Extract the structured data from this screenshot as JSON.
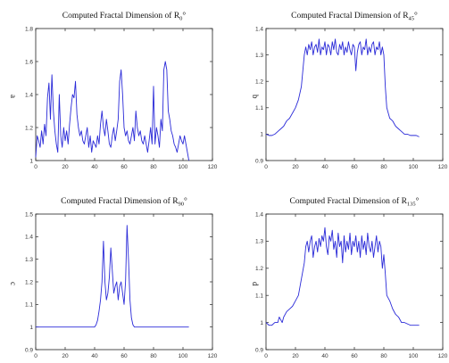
{
  "chart_data": [
    {
      "type": "line",
      "panel_label": "a",
      "title": {
        "prefix": "Computed Fractal Dimension of R",
        "sub": "0",
        "suffix": "°"
      },
      "xlim": [
        0,
        120
      ],
      "ylim": [
        1,
        1.8
      ],
      "xticks": [
        0,
        20,
        40,
        60,
        80,
        100,
        120
      ],
      "yticks": [
        1,
        1.2,
        1.4,
        1.6,
        1.8
      ],
      "ytick_labels": [
        "1",
        "1.2",
        "1.4",
        "1.6",
        "1.8"
      ],
      "color": "#2a2ad8",
      "series": [
        {
          "x": [
            0,
            1,
            2,
            3,
            4,
            5,
            6,
            7,
            8,
            9,
            10,
            11,
            12,
            13,
            14,
            15,
            16,
            17,
            18,
            19,
            20,
            21,
            22,
            23,
            24,
            25,
            26,
            27,
            28,
            29,
            30,
            31,
            32,
            33,
            34,
            35,
            36,
            37,
            38,
            39,
            40,
            41,
            42,
            43,
            44,
            45,
            46,
            47,
            48,
            49,
            50,
            51,
            52,
            53,
            54,
            55,
            56,
            57,
            58,
            59,
            60,
            61,
            62,
            63,
            64,
            65,
            66,
            67,
            68,
            69,
            70,
            71,
            72,
            73,
            74,
            75,
            76,
            77,
            78,
            79,
            80,
            81,
            82,
            83,
            84,
            85,
            86,
            87,
            88,
            89,
            90,
            91,
            92,
            93,
            94,
            95,
            96,
            97,
            98,
            99,
            100,
            101,
            102,
            103,
            104
          ],
          "y": [
            1.02,
            1.15,
            1.12,
            1.08,
            1.18,
            1.1,
            1.22,
            1.15,
            1.38,
            1.47,
            1.25,
            1.52,
            1.3,
            1.18,
            1.1,
            1.05,
            1.4,
            1.15,
            1.08,
            1.2,
            1.12,
            1.18,
            1.1,
            1.22,
            1.32,
            1.4,
            1.38,
            1.48,
            1.28,
            1.2,
            1.15,
            1.18,
            1.12,
            1.1,
            1.15,
            1.2,
            1.08,
            1.15,
            1.05,
            1.12,
            1.1,
            1.08,
            1.15,
            1.1,
            1.22,
            1.3,
            1.2,
            1.15,
            1.25,
            1.18,
            1.1,
            1.08,
            1.15,
            1.2,
            1.12,
            1.18,
            1.25,
            1.48,
            1.55,
            1.4,
            1.2,
            1.15,
            1.18,
            1.12,
            1.1,
            1.15,
            1.2,
            1.12,
            1.3,
            1.2,
            1.15,
            1.18,
            1.12,
            1.1,
            1.15,
            1.1,
            1.05,
            1.12,
            1.2,
            1.1,
            1.45,
            1.1,
            1.2,
            1.15,
            1.08,
            1.25,
            1.18,
            1.55,
            1.6,
            1.55,
            1.3,
            1.25,
            1.18,
            1.15,
            1.1,
            1.08,
            1.05,
            1.1,
            1.15,
            1.12,
            1.1,
            1.15,
            1.1,
            1.05,
            1.0
          ]
        }
      ]
    },
    {
      "type": "line",
      "panel_label": "b",
      "title": {
        "prefix": "Computed Fractal Dimension of R",
        "sub": "45",
        "suffix": "°"
      },
      "xlim": [
        0,
        120
      ],
      "ylim": [
        0.9,
        1.4
      ],
      "xticks": [
        0,
        20,
        40,
        60,
        80,
        100,
        120
      ],
      "yticks": [
        0.9,
        1,
        1.1,
        1.2,
        1.3,
        1.4
      ],
      "ytick_labels": [
        "0.9",
        "1",
        "1.1",
        "1.2",
        "1.3",
        "1.4"
      ],
      "color": "#2a2ad8",
      "series": [
        {
          "x": [
            0,
            2,
            4,
            6,
            8,
            10,
            12,
            14,
            16,
            18,
            20,
            22,
            24,
            25,
            26,
            27,
            28,
            29,
            30,
            31,
            32,
            33,
            34,
            35,
            36,
            37,
            38,
            39,
            40,
            41,
            42,
            43,
            44,
            45,
            46,
            47,
            48,
            49,
            50,
            51,
            52,
            53,
            54,
            55,
            56,
            57,
            58,
            59,
            60,
            61,
            62,
            63,
            64,
            65,
            66,
            67,
            68,
            69,
            70,
            71,
            72,
            73,
            74,
            75,
            76,
            77,
            78,
            79,
            80,
            81,
            82,
            84,
            86,
            88,
            90,
            92,
            94,
            96,
            98,
            100,
            102,
            104
          ],
          "y": [
            1.0,
            0.995,
            0.995,
            1.0,
            1.01,
            1.02,
            1.03,
            1.05,
            1.06,
            1.08,
            1.1,
            1.13,
            1.18,
            1.24,
            1.3,
            1.33,
            1.3,
            1.34,
            1.32,
            1.35,
            1.3,
            1.33,
            1.34,
            1.31,
            1.36,
            1.3,
            1.33,
            1.32,
            1.35,
            1.3,
            1.34,
            1.33,
            1.3,
            1.35,
            1.32,
            1.36,
            1.31,
            1.3,
            1.34,
            1.32,
            1.35,
            1.3,
            1.33,
            1.31,
            1.35,
            1.32,
            1.3,
            1.34,
            1.33,
            1.24,
            1.31,
            1.34,
            1.35,
            1.3,
            1.33,
            1.32,
            1.36,
            1.3,
            1.33,
            1.31,
            1.34,
            1.35,
            1.3,
            1.33,
            1.32,
            1.35,
            1.3,
            1.33,
            1.3,
            1.18,
            1.1,
            1.06,
            1.05,
            1.03,
            1.02,
            1.01,
            1.0,
            1.0,
            0.995,
            0.995,
            0.995,
            0.99
          ]
        }
      ]
    },
    {
      "type": "line",
      "panel_label": "c",
      "title": {
        "prefix": "Computed Fractal Dimension of R",
        "sub": "90",
        "suffix": "°"
      },
      "xlim": [
        0,
        120
      ],
      "ylim": [
        0.9,
        1.5
      ],
      "xticks": [
        0,
        20,
        40,
        60,
        80,
        100,
        120
      ],
      "yticks": [
        0.9,
        1,
        1.1,
        1.2,
        1.3,
        1.4,
        1.5
      ],
      "ytick_labels": [
        "0.9",
        "1",
        "1.1",
        "1.2",
        "1.3",
        "1.4",
        "1.5"
      ],
      "color": "#2a2ad8",
      "series": [
        {
          "x": [
            0,
            10,
            20,
            30,
            40,
            41,
            42,
            43,
            44,
            45,
            46,
            47,
            48,
            49,
            50,
            51,
            52,
            53,
            54,
            55,
            56,
            57,
            58,
            59,
            60,
            61,
            62,
            63,
            64,
            65,
            66,
            67,
            70,
            80,
            90,
            100,
            104
          ],
          "y": [
            1.0,
            1.0,
            1.0,
            1.0,
            1.0,
            1.01,
            1.03,
            1.07,
            1.12,
            1.2,
            1.38,
            1.2,
            1.12,
            1.15,
            1.22,
            1.35,
            1.25,
            1.15,
            1.18,
            1.2,
            1.12,
            1.18,
            1.2,
            1.15,
            1.1,
            1.2,
            1.45,
            1.3,
            1.12,
            1.04,
            1.01,
            1.0,
            1.0,
            1.0,
            1.0,
            1.0,
            1.0
          ]
        }
      ]
    },
    {
      "type": "line",
      "panel_label": "d",
      "title": {
        "prefix": "Computed Fractal Dimension of R",
        "sub": "135",
        "suffix": "°"
      },
      "xlim": [
        0,
        120
      ],
      "ylim": [
        0.9,
        1.4
      ],
      "xticks": [
        0,
        20,
        40,
        60,
        80,
        100,
        120
      ],
      "yticks": [
        0.9,
        1,
        1.1,
        1.2,
        1.3,
        1.4
      ],
      "ytick_labels": [
        "0.9",
        "1",
        "1.1",
        "1.2",
        "1.3",
        "1.4"
      ],
      "color": "#2a2ad8",
      "series": [
        {
          "x": [
            0,
            2,
            4,
            6,
            8,
            9,
            10,
            11,
            12,
            14,
            16,
            18,
            20,
            22,
            24,
            26,
            27,
            28,
            29,
            30,
            31,
            32,
            33,
            34,
            35,
            36,
            37,
            38,
            39,
            40,
            41,
            42,
            43,
            44,
            45,
            46,
            47,
            48,
            49,
            50,
            51,
            52,
            53,
            54,
            55,
            56,
            57,
            58,
            59,
            60,
            61,
            62,
            63,
            64,
            65,
            66,
            67,
            68,
            69,
            70,
            71,
            72,
            73,
            74,
            75,
            76,
            77,
            78,
            79,
            80,
            81,
            82,
            84,
            86,
            88,
            90,
            92,
            94,
            96,
            98,
            100,
            102,
            104
          ],
          "y": [
            1.0,
            0.99,
            0.99,
            1.0,
            1.0,
            1.02,
            1.01,
            1.0,
            1.02,
            1.04,
            1.05,
            1.06,
            1.08,
            1.1,
            1.16,
            1.22,
            1.28,
            1.3,
            1.26,
            1.3,
            1.32,
            1.24,
            1.28,
            1.3,
            1.26,
            1.31,
            1.28,
            1.32,
            1.3,
            1.35,
            1.28,
            1.25,
            1.32,
            1.3,
            1.34,
            1.27,
            1.3,
            1.24,
            1.33,
            1.28,
            1.3,
            1.22,
            1.32,
            1.26,
            1.3,
            1.27,
            1.33,
            1.25,
            1.3,
            1.28,
            1.32,
            1.26,
            1.3,
            1.24,
            1.32,
            1.27,
            1.3,
            1.25,
            1.33,
            1.28,
            1.26,
            1.3,
            1.24,
            1.28,
            1.32,
            1.26,
            1.3,
            1.28,
            1.2,
            1.25,
            1.18,
            1.1,
            1.08,
            1.05,
            1.03,
            1.02,
            1.0,
            1.0,
            0.995,
            0.99,
            0.99,
            0.99,
            0.99
          ]
        }
      ]
    }
  ]
}
